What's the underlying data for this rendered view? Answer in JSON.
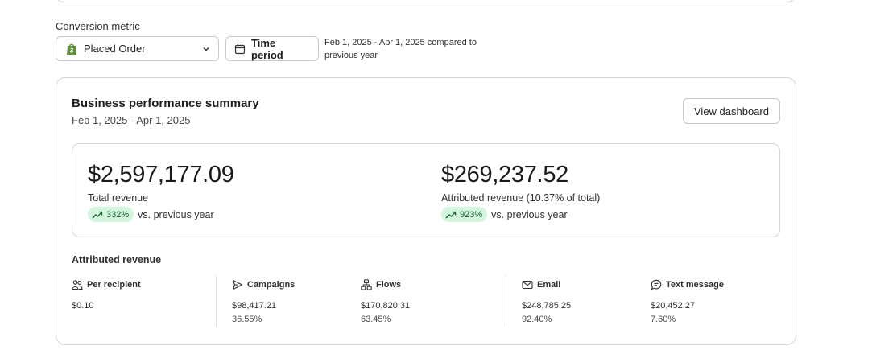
{
  "conversion": {
    "label": "Conversion metric",
    "selected": "Placed Order",
    "time_button": "Time period",
    "period_line1": "Feb 1, 2025 - Apr 1, 2025 compared to",
    "period_line2": "previous year"
  },
  "summary": {
    "title": "Business performance summary",
    "date_range": "Feb 1, 2025 - Apr 1, 2025",
    "view_button": "View dashboard",
    "total": {
      "amount": "$2,597,177.09",
      "label": "Total revenue",
      "change": "332%",
      "comparison": "vs. previous year"
    },
    "attributed": {
      "amount": "$269,237.52",
      "label": "Attributed revenue (10.37% of total)",
      "change": "923%",
      "comparison": "vs. previous year"
    },
    "trend_color": "#d3f5dd"
  },
  "attributed_revenue": {
    "heading": "Attributed revenue",
    "stats": [
      {
        "label": "Per recipient",
        "icon": "people-icon",
        "value": "$0.10",
        "percent": ""
      },
      {
        "label": "Campaigns",
        "icon": "send-icon",
        "value": "$98,417.21",
        "percent": "36.55%"
      },
      {
        "label": "Flows",
        "icon": "flow-icon",
        "value": "$170,820.31",
        "percent": "63.45%"
      },
      {
        "label": "Email",
        "icon": "envelope-icon",
        "value": "$248,785.25",
        "percent": "92.40%"
      },
      {
        "label": "Text message",
        "icon": "chat-icon",
        "value": "$20,452.27",
        "percent": "7.60%"
      }
    ]
  }
}
